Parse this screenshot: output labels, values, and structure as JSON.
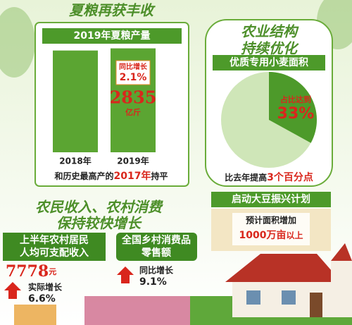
{
  "grain": {
    "title": "夏粮再获丰收",
    "subtitle": "2019年夏粮产量",
    "chart": {
      "type": "bar",
      "categories": [
        "2018年",
        "2019年"
      ],
      "values": [
        2776,
        2835
      ],
      "ylim": [
        0,
        3000
      ]
    },
    "growth_label": "同比增长",
    "growth": "2.1%",
    "output": "2835",
    "unit": "亿斤",
    "note_prefix": "和历史最高产的",
    "note_highlight": "2017年",
    "note_suffix": "持平"
  },
  "structure": {
    "title_line1": "农业结构",
    "title_line2": "持续优化",
    "subtitle": "优质专用小麦面积",
    "chart": {
      "type": "pie",
      "values": [
        33
      ],
      "value_labels": [
        "33%"
      ]
    },
    "share_label": "占比达到",
    "note_prefix": "比去年提高",
    "note_highlight": "3个百分点"
  },
  "soybean": {
    "title": "启动大豆振兴计划",
    "line1": "预计面积增加",
    "line2_highlight": "1000万亩",
    "line2_suffix": "以上"
  },
  "income": {
    "title_line1": "农民收入、农村消费",
    "title_line2": "保持较快增长",
    "income_label_line1": "上半年农村居民",
    "income_label_line2": "人均可支配收入",
    "income_value": "7778",
    "income_unit": "元",
    "real_growth_label": "实际增长",
    "real_growth": "6.6%",
    "retail_label_line1": "全国乡村消费品",
    "retail_label_line2": "零售额",
    "retail_growth_label": "同比增长",
    "retail_growth": "9.1%"
  }
}
